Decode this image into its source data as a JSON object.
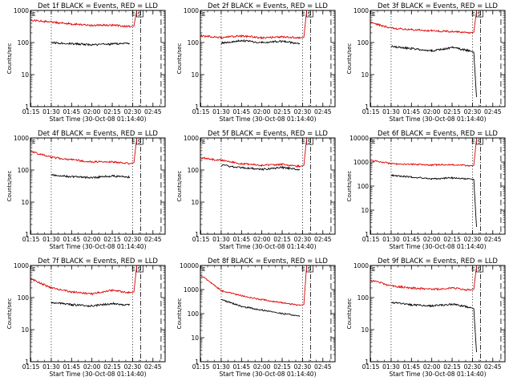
{
  "colors": {
    "events": "#000000",
    "lld": "#e00000",
    "background": "#ffffff",
    "axes": "#000000"
  },
  "chart_data": [
    {
      "type": "line",
      "title": "Det 1f BLACK = Events, RED = LLD",
      "xlabel": "Start Time (30-Oct-08 01:14:40)",
      "ylabel": "Counts/sec",
      "x_ticks": [
        "01:15",
        "01:30",
        "01:45",
        "02:00",
        "02:15",
        "02:30",
        "02:45"
      ],
      "xlim": [
        "01:14:40",
        "02:54:00"
      ],
      "y_ticks": [
        "1",
        "10",
        "100",
        "1000"
      ],
      "ylim": [
        1,
        1000
      ],
      "yscale": "log",
      "flags": [
        "E",
        "S"
      ],
      "x": [
        "01:15",
        "01:30",
        "01:45",
        "02:00",
        "02:15",
        "02:28",
        "02:31",
        "02:33"
      ],
      "series": [
        {
          "name": "Events",
          "color": "black",
          "values": [
            null,
            100,
            92,
            85,
            90,
            95,
            null,
            null
          ]
        },
        {
          "name": "LLD",
          "color": "red",
          "values": [
            500,
            430,
            380,
            340,
            350,
            310,
            330,
            950
          ]
        }
      ],
      "vlines": [
        {
          "x": "01:30",
          "style": "dotted"
        },
        {
          "x": "02:30",
          "style": "dotted"
        },
        {
          "x": "02:36",
          "style": "dashdot"
        },
        {
          "x": "02:51",
          "style": "dashed"
        }
      ]
    },
    {
      "type": "line",
      "title": "Det 2f BLACK = Events, RED = LLD",
      "xlabel": "Start Time (30-Oct-08 01:14:40)",
      "ylabel": "Counts/sec",
      "x_ticks": [
        "01:15",
        "01:30",
        "01:45",
        "02:00",
        "02:15",
        "02:30",
        "02:45"
      ],
      "xlim": [
        "01:14:40",
        "02:54:00"
      ],
      "y_ticks": [
        "1",
        "10",
        "100",
        "1000"
      ],
      "ylim": [
        1,
        1000
      ],
      "yscale": "log",
      "flags": [
        "E",
        "S"
      ],
      "x": [
        "01:15",
        "01:30",
        "01:45",
        "02:00",
        "02:15",
        "02:28",
        "02:31",
        "02:33"
      ],
      "series": [
        {
          "name": "Events",
          "color": "black",
          "values": [
            null,
            95,
            115,
            100,
            110,
            92,
            null,
            null
          ]
        },
        {
          "name": "LLD",
          "color": "red",
          "values": [
            160,
            145,
            160,
            140,
            150,
            140,
            145,
            950
          ]
        }
      ],
      "vlines": [
        {
          "x": "01:30",
          "style": "dotted"
        },
        {
          "x": "02:30",
          "style": "dotted"
        },
        {
          "x": "02:36",
          "style": "dashdot"
        },
        {
          "x": "02:51",
          "style": "dashed"
        }
      ]
    },
    {
      "type": "line",
      "title": "Det 3f BLACK = Events, RED = LLD",
      "xlabel": "Start Time (30-Oct-08 01:14:40)",
      "ylabel": "Counts/sec",
      "x_ticks": [
        "01:15",
        "01:30",
        "01:45",
        "02:00",
        "02:15",
        "02:30",
        "02:45"
      ],
      "xlim": [
        "01:14:40",
        "02:54:00"
      ],
      "y_ticks": [
        "1",
        "10",
        "100",
        "1000"
      ],
      "ylim": [
        1,
        1000
      ],
      "yscale": "log",
      "flags": [
        "E",
        "S"
      ],
      "x": [
        "01:15",
        "01:30",
        "01:45",
        "02:00",
        "02:15",
        "02:28",
        "02:31",
        "02:33"
      ],
      "series": [
        {
          "name": "Events",
          "color": "black",
          "values": [
            null,
            75,
            65,
            55,
            70,
            55,
            50,
            2
          ]
        },
        {
          "name": "LLD",
          "color": "red",
          "values": [
            420,
            280,
            250,
            230,
            220,
            200,
            210,
            950
          ]
        }
      ],
      "vlines": [
        {
          "x": "01:30",
          "style": "dotted"
        },
        {
          "x": "02:30",
          "style": "dotted"
        },
        {
          "x": "02:36",
          "style": "dashdot"
        },
        {
          "x": "02:51",
          "style": "dashed"
        }
      ]
    },
    {
      "type": "line",
      "title": "Det 4f BLACK = Events, RED = LLD",
      "xlabel": "Start Time (30-Oct-08 01:14:40)",
      "ylabel": "Counts/sec",
      "x_ticks": [
        "01:15",
        "01:30",
        "01:45",
        "02:00",
        "02:15",
        "02:30",
        "02:45"
      ],
      "xlim": [
        "01:14:40",
        "02:54:00"
      ],
      "y_ticks": [
        "1",
        "10",
        "100",
        "1000"
      ],
      "ylim": [
        1,
        1000
      ],
      "yscale": "log",
      "flags": [
        "E",
        "S"
      ],
      "x": [
        "01:15",
        "01:30",
        "01:45",
        "02:00",
        "02:15",
        "02:28",
        "02:31",
        "02:33"
      ],
      "series": [
        {
          "name": "Events",
          "color": "black",
          "values": [
            null,
            70,
            62,
            58,
            65,
            60,
            null,
            null
          ]
        },
        {
          "name": "LLD",
          "color": "red",
          "values": [
            380,
            250,
            210,
            180,
            180,
            160,
            170,
            950
          ]
        }
      ],
      "vlines": [
        {
          "x": "01:30",
          "style": "dotted"
        },
        {
          "x": "02:30",
          "style": "dotted"
        },
        {
          "x": "02:36",
          "style": "dashdot"
        },
        {
          "x": "02:51",
          "style": "dashed"
        }
      ]
    },
    {
      "type": "line",
      "title": "Det 5f BLACK = Events, RED = LLD",
      "xlabel": "Start Time (30-Oct-08 01:14:40)",
      "ylabel": "Counts/sec",
      "x_ticks": [
        "01:15",
        "01:30",
        "01:45",
        "02:00",
        "02:15",
        "02:30",
        "02:45"
      ],
      "xlim": [
        "01:14:40",
        "02:54:00"
      ],
      "y_ticks": [
        "1",
        "10",
        "100",
        "1000"
      ],
      "ylim": [
        1,
        1000
      ],
      "yscale": "log",
      "flags": [
        "E",
        "S"
      ],
      "x": [
        "01:15",
        "01:30",
        "01:45",
        "02:00",
        "02:15",
        "02:28",
        "02:31",
        "02:33"
      ],
      "series": [
        {
          "name": "Events",
          "color": "black",
          "values": [
            null,
            140,
            120,
            105,
            120,
            105,
            null,
            null
          ]
        },
        {
          "name": "LLD",
          "color": "red",
          "values": [
            240,
            200,
            160,
            140,
            150,
            130,
            140,
            950
          ]
        }
      ],
      "vlines": [
        {
          "x": "01:30",
          "style": "dotted"
        },
        {
          "x": "02:30",
          "style": "dotted"
        },
        {
          "x": "02:36",
          "style": "dashdot"
        },
        {
          "x": "02:51",
          "style": "dashed"
        }
      ]
    },
    {
      "type": "line",
      "title": "Det 6f BLACK = Events, RED = LLD",
      "xlabel": "Start Time (30-Oct-08 01:14:40)",
      "ylabel": "Counts/sec",
      "x_ticks": [
        "01:15",
        "01:30",
        "01:45",
        "02:00",
        "02:15",
        "02:30",
        "02:45"
      ],
      "xlim": [
        "01:14:40",
        "02:54:00"
      ],
      "y_ticks": [
        "1",
        "10",
        "100",
        "1000",
        "10000"
      ],
      "ylim": [
        1,
        10000
      ],
      "yscale": "log",
      "flags": [
        "E",
        "S"
      ],
      "x": [
        "01:15",
        "01:30",
        "01:45",
        "02:00",
        "02:15",
        "02:28",
        "02:31",
        "02:33"
      ],
      "series": [
        {
          "name": "Events",
          "color": "black",
          "values": [
            null,
            280,
            240,
            200,
            220,
            200,
            190,
            2
          ]
        },
        {
          "name": "LLD",
          "color": "red",
          "values": [
            1200,
            850,
            800,
            760,
            780,
            700,
            720,
            9000
          ]
        }
      ],
      "vlines": [
        {
          "x": "01:30",
          "style": "dotted"
        },
        {
          "x": "02:30",
          "style": "dotted"
        },
        {
          "x": "02:36",
          "style": "dashdot"
        },
        {
          "x": "02:51",
          "style": "dashed"
        }
      ]
    },
    {
      "type": "line",
      "title": "Det 7f BLACK = Events, RED = LLD",
      "xlabel": "Start Time (30-Oct-08 01:14:40)",
      "ylabel": "Counts/sec",
      "x_ticks": [
        "01:15",
        "01:30",
        "01:45",
        "02:00",
        "02:15",
        "02:30",
        "02:45"
      ],
      "xlim": [
        "01:14:40",
        "02:54:00"
      ],
      "y_ticks": [
        "1",
        "10",
        "100",
        "1000"
      ],
      "ylim": [
        1,
        1000
      ],
      "yscale": "log",
      "flags": [
        "E",
        "S"
      ],
      "x": [
        "01:15",
        "01:30",
        "01:45",
        "02:00",
        "02:15",
        "02:28",
        "02:31",
        "02:33"
      ],
      "series": [
        {
          "name": "Events",
          "color": "black",
          "values": [
            null,
            70,
            60,
            55,
            65,
            58,
            null,
            null
          ]
        },
        {
          "name": "LLD",
          "color": "red",
          "values": [
            380,
            200,
            150,
            130,
            170,
            140,
            150,
            950
          ]
        }
      ],
      "vlines": [
        {
          "x": "01:30",
          "style": "dotted"
        },
        {
          "x": "02:30",
          "style": "dotted"
        },
        {
          "x": "02:36",
          "style": "dashdot"
        },
        {
          "x": "02:51",
          "style": "dashed"
        }
      ]
    },
    {
      "type": "line",
      "title": "Det 8f BLACK = Events, RED = LLD",
      "xlabel": "Start Time (30-Oct-08 01:14:40)",
      "ylabel": "Counts/sec",
      "x_ticks": [
        "01:15",
        "01:30",
        "01:45",
        "02:00",
        "02:15",
        "02:30",
        "02:45"
      ],
      "xlim": [
        "01:14:40",
        "02:54:00"
      ],
      "y_ticks": [
        "1",
        "10",
        "100",
        "1000",
        "10000"
      ],
      "ylim": [
        1,
        10000
      ],
      "yscale": "log",
      "flags": [
        "E",
        "S"
      ],
      "x": [
        "01:15",
        "01:30",
        "01:45",
        "02:00",
        "02:15",
        "02:28",
        "02:31",
        "02:33"
      ],
      "series": [
        {
          "name": "Events",
          "color": "black",
          "values": [
            null,
            380,
            200,
            140,
            100,
            80,
            null,
            null
          ]
        },
        {
          "name": "LLD",
          "color": "red",
          "values": [
            4000,
            900,
            550,
            380,
            280,
            220,
            240,
            9000
          ]
        }
      ],
      "vlines": [
        {
          "x": "01:30",
          "style": "dotted"
        },
        {
          "x": "02:30",
          "style": "dotted"
        },
        {
          "x": "02:36",
          "style": "dashdot"
        },
        {
          "x": "02:51",
          "style": "dashed"
        }
      ]
    },
    {
      "type": "line",
      "title": "Det 9f BLACK = Events, RED = LLD",
      "xlabel": "Start Time (30-Oct-08 01:14:40)",
      "ylabel": "Counts/sec",
      "x_ticks": [
        "01:15",
        "01:30",
        "01:45",
        "02:00",
        "02:15",
        "02:30",
        "02:45"
      ],
      "xlim": [
        "01:14:40",
        "02:54:00"
      ],
      "y_ticks": [
        "1",
        "10",
        "100",
        "1000"
      ],
      "ylim": [
        1,
        1000
      ],
      "yscale": "log",
      "flags": [
        "E",
        "S"
      ],
      "x": [
        "01:15",
        "01:30",
        "01:45",
        "02:00",
        "02:15",
        "02:28",
        "02:31",
        "02:33"
      ],
      "series": [
        {
          "name": "Events",
          "color": "black",
          "values": [
            null,
            70,
            60,
            55,
            62,
            50,
            45,
            2
          ]
        },
        {
          "name": "LLD",
          "color": "red",
          "values": [
            350,
            230,
            200,
            180,
            200,
            170,
            180,
            950
          ]
        }
      ],
      "vlines": [
        {
          "x": "01:30",
          "style": "dotted"
        },
        {
          "x": "02:30",
          "style": "dotted"
        },
        {
          "x": "02:36",
          "style": "dashdot"
        },
        {
          "x": "02:51",
          "style": "dashed"
        }
      ]
    }
  ]
}
